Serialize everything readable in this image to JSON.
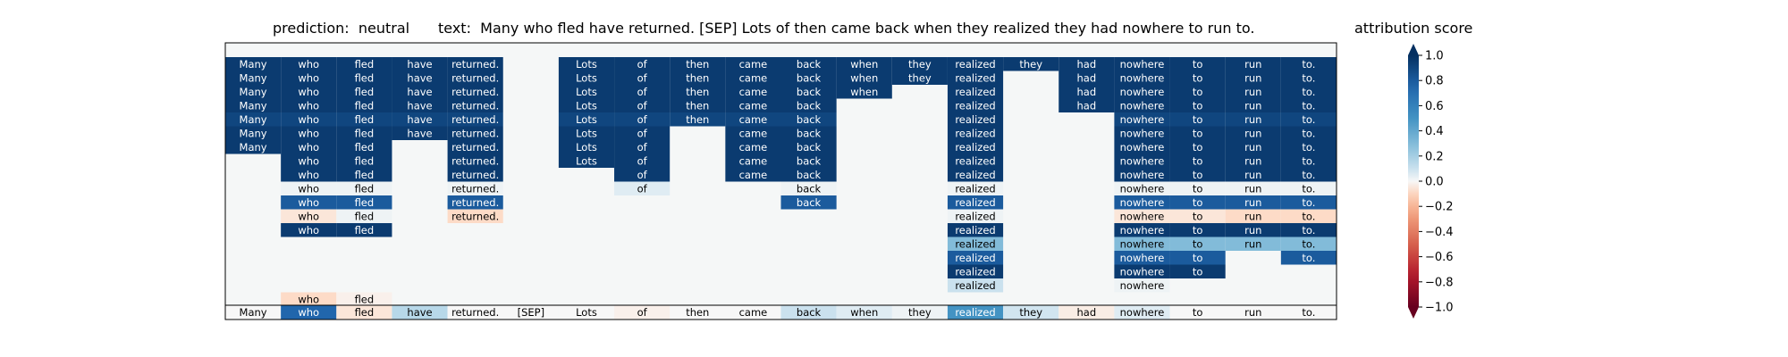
{
  "header": {
    "prediction": "prediction:  neutral",
    "text": "text:  Many who fled have returned. [SEP] Lots of then came back when they realized they had nowhere to run to.",
    "colorbar_title": "attribution score"
  },
  "colors": {
    "background": "#f5f7f7",
    "border": "#000000",
    "dark_blue": "#0d3e73",
    "mid_blue": "#2d72b4",
    "light_blue": "#b8d8ea",
    "pale_blue": "#dde9f2",
    "pale_red": "#fbe5db",
    "colormap": "RdBu"
  },
  "chart_data": {
    "type": "heatmap",
    "tokens": [
      "Many",
      "who",
      "fled",
      "have",
      "returned.",
      "[SEP]",
      "Lots",
      "of",
      "then",
      "came",
      "back",
      "when",
      "they",
      "realized",
      "they",
      "had",
      "nowhere",
      "to",
      "run",
      "to."
    ],
    "rows": [
      [
        0.95,
        0.95,
        0.95,
        0.95,
        0.95,
        null,
        0.95,
        0.95,
        0.95,
        0.95,
        0.95,
        0.95,
        0.95,
        0.95,
        0.95,
        0.95,
        0.95,
        0.95,
        0.95,
        0.95
      ],
      [
        0.95,
        0.95,
        0.95,
        0.95,
        0.95,
        null,
        0.95,
        0.95,
        0.95,
        0.95,
        0.95,
        0.95,
        0.95,
        0.95,
        null,
        0.95,
        0.95,
        0.95,
        0.95,
        0.95
      ],
      [
        0.95,
        0.95,
        0.95,
        0.95,
        0.95,
        null,
        0.95,
        0.95,
        0.95,
        0.95,
        0.95,
        0.95,
        null,
        0.95,
        null,
        0.95,
        0.95,
        0.95,
        0.95,
        0.95
      ],
      [
        0.95,
        0.95,
        0.95,
        0.95,
        0.95,
        null,
        0.95,
        0.95,
        0.95,
        0.95,
        0.95,
        null,
        null,
        0.95,
        null,
        0.95,
        0.95,
        0.95,
        0.95,
        0.95
      ],
      [
        0.9,
        0.9,
        0.9,
        0.9,
        0.9,
        null,
        0.9,
        0.9,
        0.9,
        0.9,
        0.9,
        null,
        null,
        0.95,
        null,
        null,
        0.9,
        0.9,
        0.9,
        0.9
      ],
      [
        0.95,
        0.95,
        0.95,
        0.95,
        0.95,
        null,
        0.95,
        0.95,
        null,
        0.95,
        0.95,
        null,
        null,
        0.95,
        null,
        null,
        0.95,
        0.95,
        0.95,
        0.95
      ],
      [
        0.95,
        0.95,
        0.95,
        null,
        0.95,
        null,
        0.95,
        0.95,
        null,
        0.95,
        0.95,
        null,
        null,
        0.95,
        null,
        null,
        0.95,
        0.95,
        0.95,
        0.95
      ],
      [
        null,
        0.95,
        0.95,
        null,
        0.95,
        null,
        0.95,
        0.95,
        null,
        0.95,
        0.95,
        null,
        null,
        0.95,
        null,
        null,
        0.95,
        0.95,
        0.95,
        0.95
      ],
      [
        null,
        0.95,
        0.95,
        null,
        0.95,
        null,
        null,
        0.95,
        null,
        0.95,
        0.95,
        null,
        null,
        0.95,
        null,
        null,
        0.95,
        0.95,
        0.95,
        0.95
      ],
      [
        null,
        0.02,
        0.02,
        null,
        0.02,
        null,
        null,
        0.05,
        null,
        null,
        0.02,
        null,
        null,
        0.02,
        null,
        null,
        0.02,
        0.02,
        0.02,
        0.02
      ],
      [
        null,
        0.8,
        0.8,
        null,
        0.8,
        null,
        null,
        null,
        null,
        null,
        0.8,
        null,
        null,
        0.8,
        null,
        null,
        0.8,
        0.8,
        0.8,
        0.8
      ],
      [
        null,
        -0.05,
        0.02,
        null,
        -0.08,
        null,
        null,
        null,
        null,
        null,
        null,
        null,
        null,
        0.02,
        null,
        null,
        -0.05,
        -0.05,
        -0.08,
        -0.08
      ],
      [
        null,
        0.95,
        0.95,
        null,
        null,
        null,
        null,
        null,
        null,
        null,
        null,
        null,
        null,
        0.95,
        null,
        null,
        0.95,
        0.95,
        0.95,
        0.95
      ],
      [
        null,
        null,
        null,
        null,
        null,
        null,
        null,
        null,
        null,
        null,
        null,
        null,
        null,
        0.3,
        null,
        null,
        0.3,
        0.3,
        0.3,
        0.3
      ],
      [
        null,
        null,
        null,
        null,
        null,
        null,
        null,
        null,
        null,
        null,
        null,
        null,
        null,
        0.8,
        null,
        null,
        0.8,
        0.8,
        null,
        0.8
      ],
      [
        null,
        null,
        null,
        null,
        null,
        null,
        null,
        null,
        null,
        null,
        null,
        null,
        null,
        0.95,
        null,
        null,
        0.95,
        0.95,
        null,
        null
      ],
      [
        null,
        null,
        null,
        null,
        null,
        null,
        null,
        null,
        null,
        null,
        null,
        null,
        null,
        0.1,
        null,
        null,
        0.02,
        null,
        null,
        null
      ],
      [
        null,
        -0.08,
        -0.02,
        null,
        null,
        null,
        null,
        null,
        null,
        null,
        null,
        null,
        null,
        null,
        null,
        null,
        null,
        null,
        null,
        null
      ]
    ],
    "bottom_row": [
      0.0,
      0.75,
      -0.05,
      0.15,
      0.0,
      0.0,
      0.0,
      -0.02,
      0.0,
      0.0,
      0.1,
      0.05,
      0.02,
      0.5,
      0.08,
      -0.03,
      0.05,
      0.0,
      0.0,
      0.0
    ],
    "colorbar": {
      "min": -1.0,
      "max": 1.0,
      "ticks": [
        1.0,
        0.8,
        0.6,
        0.4,
        0.2,
        0.0,
        -0.2,
        -0.4,
        -0.6,
        -0.8,
        -1.0
      ],
      "tick_labels": [
        "1.0",
        "0.8",
        "0.6",
        "0.4",
        "0.2",
        "0.0",
        "−0.2",
        "−0.4",
        "−0.6",
        "−0.8",
        "−1.0"
      ],
      "extend": "both"
    }
  }
}
